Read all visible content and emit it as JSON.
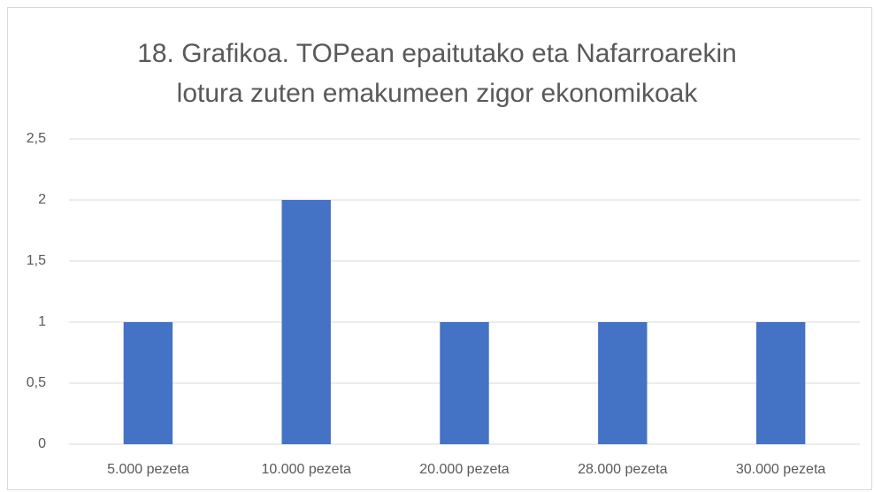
{
  "chart_data": {
    "type": "bar",
    "title": "18. Grafikoa. TOPean epaitutako eta Nafarroarekin lotura zuten emakumeen zigor ekonomikoak",
    "categories": [
      "5.000 pezeta",
      "10.000 pezeta",
      "20.000 pezeta",
      "28.000 pezeta",
      "30.000 pezeta"
    ],
    "values": [
      1,
      2,
      1,
      1,
      1
    ],
    "color": "#4472c4",
    "ylim": [
      0,
      2.5
    ],
    "yticks": [
      0,
      {
        "value": 0.5,
        "label": "0,5"
      },
      1,
      {
        "value": 1.5,
        "label": "1,5"
      },
      2,
      {
        "value": 2.5,
        "label": "2,5"
      }
    ],
    "grid": true
  }
}
